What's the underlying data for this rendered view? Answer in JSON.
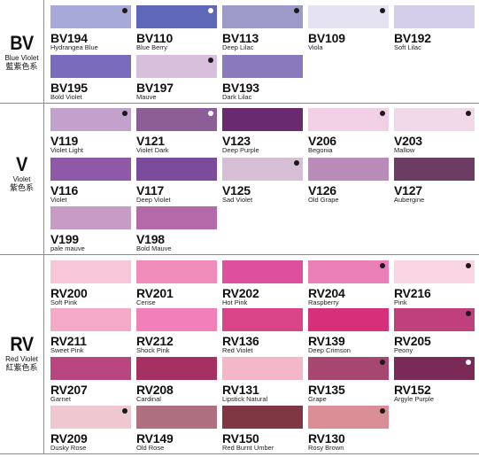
{
  "groups": [
    {
      "code": "BV",
      "name": "Blue Violet",
      "chinese": "藍紫色系",
      "rows": [
        [
          {
            "code": "BV194",
            "name": "Hydrangea Blue",
            "color": "#a7aad8",
            "dot": "black"
          },
          {
            "code": "BV110",
            "name": "Blue Berry",
            "color": "#5f67b8",
            "dot": "white"
          },
          {
            "code": "BV113",
            "name": "Deep Lilac",
            "color": "#9c9ac8",
            "dot": "black"
          },
          {
            "code": "BV109",
            "name": "Viola",
            "color": "#e5e2f1",
            "dot": "black"
          },
          {
            "code": "BV192",
            "name": "Soft Lilac",
            "color": "#d4cdea",
            "dot": "none"
          }
        ],
        [
          {
            "code": "BV195",
            "name": "Bold Violet",
            "color": "#7b6bbd",
            "dot": "none"
          },
          {
            "code": "BV197",
            "name": "Mauve",
            "color": "#d8bfdc",
            "dot": "black"
          },
          {
            "code": "BV193",
            "name": "Dark Lilac",
            "color": "#8b79bd",
            "dot": "none"
          }
        ]
      ]
    },
    {
      "code": "V",
      "name": "Violet",
      "chinese": "紫色系",
      "rows": [
        [
          {
            "code": "V119",
            "name": "Violet Light",
            "color": "#c2a1cd",
            "dot": "black"
          },
          {
            "code": "V121",
            "name": "Violet Dark",
            "color": "#8c5e96",
            "dot": "white"
          },
          {
            "code": "V123",
            "name": "Deep Purple",
            "color": "#6a2a6e",
            "dot": "none"
          },
          {
            "code": "V206",
            "name": "Begonia",
            "color": "#f1cfe4",
            "dot": "black"
          },
          {
            "code": "V203",
            "name": "Mallow",
            "color": "#f0d8e8",
            "dot": "black"
          }
        ],
        [
          {
            "code": "V116",
            "name": "Violet",
            "color": "#8e5aa8",
            "dot": "none"
          },
          {
            "code": "V117",
            "name": "Deep Violet",
            "color": "#7b4c9c",
            "dot": "none"
          },
          {
            "code": "V125",
            "name": "Sad Violet",
            "color": "#d6bfd4",
            "dot": "black"
          },
          {
            "code": "V126",
            "name": "Old Grape",
            "color": "#b98bb8",
            "dot": "none"
          },
          {
            "code": "V127",
            "name": "Aubergine",
            "color": "#6c3d63",
            "dot": "none"
          }
        ],
        [
          {
            "code": "V199",
            "name": "pale mauve",
            "color": "#c79bc3",
            "dot": "none"
          },
          {
            "code": "V198",
            "name": "Bold Mauve",
            "color": "#b46aa9",
            "dot": "none"
          }
        ]
      ]
    },
    {
      "code": "RV",
      "name": "Red Violet",
      "chinese": "紅紫色系",
      "rows": [
        [
          {
            "code": "RV200",
            "name": "Soft Pink",
            "color": "#f7c6d9",
            "dot": "none"
          },
          {
            "code": "RV201",
            "name": "Cerise",
            "color": "#ef8cb9",
            "dot": "none"
          },
          {
            "code": "RV202",
            "name": "Hot Pink",
            "color": "#de4f9e",
            "dot": "none"
          },
          {
            "code": "RV204",
            "name": "Raspberry",
            "color": "#ea7fb8",
            "dot": "black"
          },
          {
            "code": "RV216",
            "name": "Pink",
            "color": "#f9d4e2",
            "dot": "black"
          }
        ],
        [
          {
            "code": "RV211",
            "name": "Sweet Pink",
            "color": "#f4a9c6",
            "dot": "none"
          },
          {
            "code": "RV212",
            "name": "Shock Pink",
            "color": "#f17fba",
            "dot": "none"
          },
          {
            "code": "RV136",
            "name": "Red Violet",
            "color": "#d94388",
            "dot": "none"
          },
          {
            "code": "RV139",
            "name": "Deep Crimson",
            "color": "#d6307b",
            "dot": "none"
          },
          {
            "code": "RV205",
            "name": "Peony",
            "color": "#c03f7d",
            "dot": "black"
          }
        ],
        [
          {
            "code": "RV207",
            "name": "Garnet",
            "color": "#b9457e",
            "dot": "none"
          },
          {
            "code": "RV208",
            "name": "Cardinal",
            "color": "#a53062",
            "dot": "none"
          },
          {
            "code": "RV131",
            "name": "Lipstick Natural",
            "color": "#f4b6c9",
            "dot": "none"
          },
          {
            "code": "RV135",
            "name": "Grape",
            "color": "#a5476e",
            "dot": "black"
          },
          {
            "code": "RV152",
            "name": "Argyle Purple",
            "color": "#7a2a57",
            "dot": "white"
          }
        ],
        [
          {
            "code": "RV209",
            "name": "Dusky Rose",
            "color": "#efc7d0",
            "dot": "black"
          },
          {
            "code": "RV149",
            "name": "Old Rose",
            "color": "#ae6f7e",
            "dot": "none"
          },
          {
            "code": "RV150",
            "name": "Red Burnt Umber",
            "color": "#7e3743",
            "dot": "none"
          },
          {
            "code": "RV130",
            "name": "Rosy Brown",
            "color": "#d98d94",
            "dot": "black"
          }
        ]
      ]
    }
  ]
}
